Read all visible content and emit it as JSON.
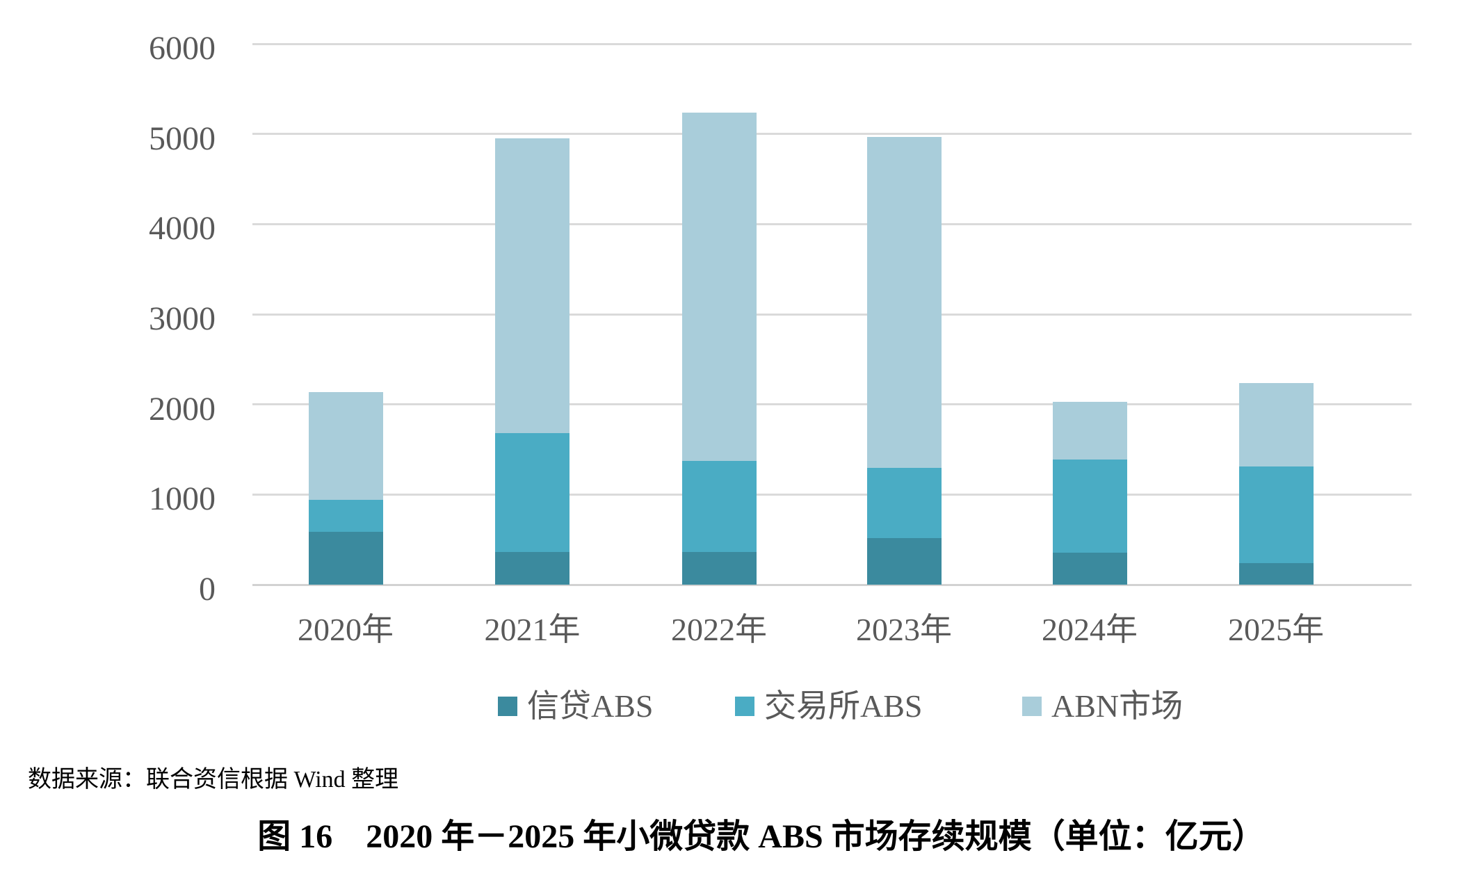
{
  "chart_data": {
    "type": "bar",
    "stacked": true,
    "categories": [
      "2020年",
      "2021年",
      "2022年",
      "2023年",
      "2024年",
      "2025年"
    ],
    "series": [
      {
        "name": "信贷ABS",
        "color": "#3b8a9e",
        "values": [
          590,
          365,
          365,
          520,
          355,
          240
        ]
      },
      {
        "name": "交易所ABS",
        "color": "#4aacc4",
        "values": [
          350,
          1320,
          1005,
          775,
          1035,
          1075
        ]
      },
      {
        "name": "ABN市场",
        "color": "#a9cdda",
        "values": [
          1200,
          3270,
          3870,
          3675,
          640,
          925
        ]
      }
    ],
    "totals": [
      2140,
      4955,
      5240,
      4970,
      2030,
      2240
    ],
    "ylim": [
      0,
      6000
    ],
    "yticks": [
      "0",
      "1000",
      "2000",
      "3000",
      "4000",
      "5000",
      "6000"
    ],
    "grid": true,
    "legend_position": "bottom",
    "gridline_color": "#dadada",
    "tick_label_color": "#595959"
  },
  "source_note": "数据来源：联合资信根据 Wind 整理",
  "caption": "图 16　2020 年－2025 年小微贷款 ABS 市场存续规模（单位：亿元）"
}
